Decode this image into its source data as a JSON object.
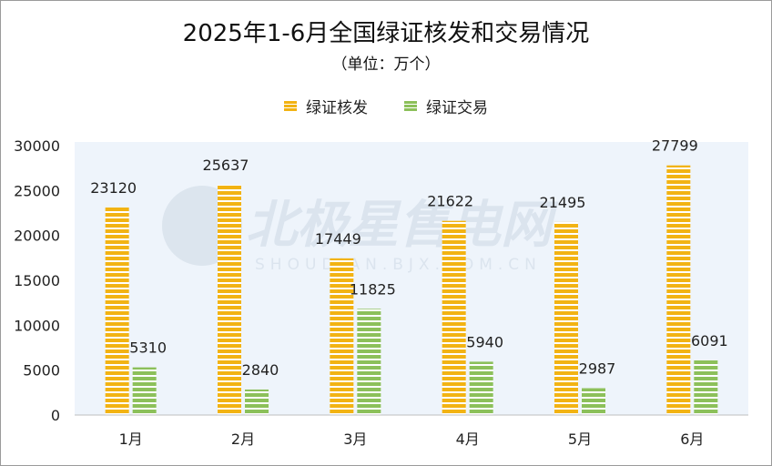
{
  "chart_data": {
    "type": "bar",
    "title": "2025年1-6月全国绿证核发和交易情况",
    "subtitle": "（单位：万个）",
    "categories": [
      "1月",
      "2月",
      "3月",
      "4月",
      "5月",
      "6月"
    ],
    "series": [
      {
        "name": "绿证核发",
        "color": "#f2b313",
        "values": [
          23120,
          25637,
          17449,
          21622,
          21495,
          27799
        ]
      },
      {
        "name": "绿证交易",
        "color": "#8cc05a",
        "values": [
          5310,
          2840,
          11825,
          5940,
          2987,
          6091
        ]
      }
    ],
    "ylim": [
      0,
      30000
    ],
    "yticks": [
      0,
      5000,
      10000,
      15000,
      20000,
      25000,
      30000
    ],
    "legend_position": "top",
    "grid": false,
    "plot_background": "#eef4fb"
  },
  "watermark": {
    "text": "北极星售电网",
    "subtext": "SHOUDIAN.BJX.COM.CN"
  }
}
